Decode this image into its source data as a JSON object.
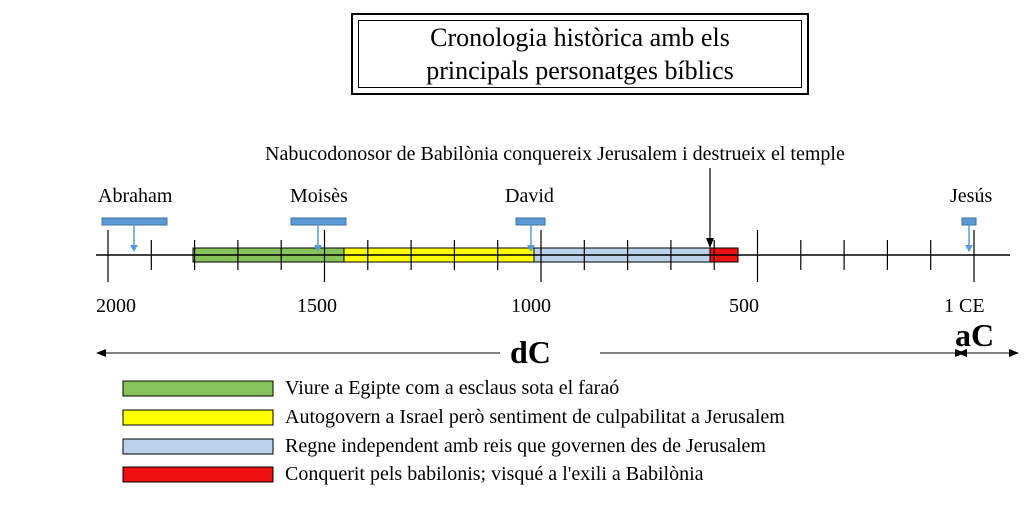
{
  "title": {
    "line1": "Cronologia històrica amb els",
    "line2": "principals personatges bíblics"
  },
  "colors": {
    "green": "#86c35a",
    "yellow": "#ffff00",
    "lightblue": "#bcd2eb",
    "red": "#ee1111",
    "marker": "#5b9bd5"
  },
  "people": [
    {
      "name": "Abraham"
    },
    {
      "name": "Moisès"
    },
    {
      "name": "David"
    },
    {
      "name": "Jesús"
    }
  ],
  "event": "Nabucodonosor de Babilònia conquereix Jerusalem i destrueix el temple",
  "ticks": [
    {
      "label": "2000"
    },
    {
      "label": "1500"
    },
    {
      "label": "1000"
    },
    {
      "label": "500"
    },
    {
      "label": "1 CE"
    }
  ],
  "eras": {
    "before": "dC",
    "after": "aC"
  },
  "legend": [
    {
      "text": "Viure a Egipte com a esclaus sota el faraó",
      "color": "#86c35a"
    },
    {
      "text": "Autogovern a Israel però sentiment de culpabilitat a Jerusalem",
      "color": "#ffff00"
    },
    {
      "text": "Regne independent amb reis que governen des de Jerusalem",
      "color": "#bcd2eb"
    },
    {
      "text": "Conquerit pels babilonis; visqué a l'exili a Babilònia",
      "color": "#ee1111"
    }
  ]
}
